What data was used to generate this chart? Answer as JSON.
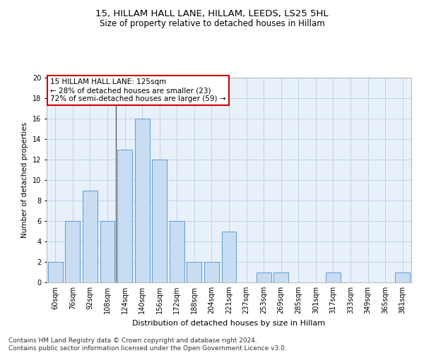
{
  "title1": "15, HILLAM HALL LANE, HILLAM, LEEDS, LS25 5HL",
  "title2": "Size of property relative to detached houses in Hillam",
  "xlabel": "Distribution of detached houses by size in Hillam",
  "ylabel": "Number of detached properties",
  "categories": [
    "60sqm",
    "76sqm",
    "92sqm",
    "108sqm",
    "124sqm",
    "140sqm",
    "156sqm",
    "172sqm",
    "188sqm",
    "204sqm",
    "221sqm",
    "237sqm",
    "253sqm",
    "269sqm",
    "285sqm",
    "301sqm",
    "317sqm",
    "333sqm",
    "349sqm",
    "365sqm",
    "381sqm"
  ],
  "values": [
    2,
    6,
    9,
    6,
    13,
    16,
    12,
    6,
    2,
    2,
    5,
    0,
    1,
    1,
    0,
    0,
    1,
    0,
    0,
    0,
    1
  ],
  "bar_color": "#c9ddf2",
  "bar_edge_color": "#5b9bd5",
  "highlight_x": "124sqm",
  "highlight_line_color": "#505050",
  "annotation_text": "15 HILLAM HALL LANE: 125sqm\n← 28% of detached houses are smaller (23)\n72% of semi-detached houses are larger (59) →",
  "annotation_box_color": "#ffffff",
  "annotation_box_edge_color": "#cc0000",
  "ylim": [
    0,
    20
  ],
  "yticks": [
    0,
    2,
    4,
    6,
    8,
    10,
    12,
    14,
    16,
    18,
    20
  ],
  "grid_color": "#b8cfe8",
  "background_color": "#e8f0fa",
  "footer": "Contains HM Land Registry data © Crown copyright and database right 2024.\nContains public sector information licensed under the Open Government Licence v3.0.",
  "title1_fontsize": 9.5,
  "title2_fontsize": 8.5,
  "xlabel_fontsize": 8,
  "ylabel_fontsize": 7.5,
  "tick_fontsize": 7,
  "annotation_fontsize": 7.5,
  "footer_fontsize": 6.5
}
